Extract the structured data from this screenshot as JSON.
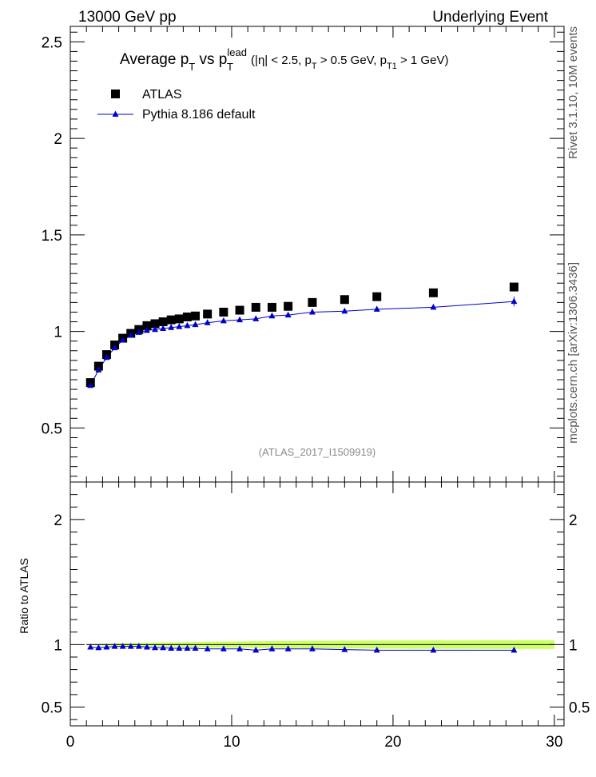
{
  "header": {
    "left": "13000 GeV pp",
    "right": "Underlying Event"
  },
  "side": {
    "rivet": "Rivet 3.1.10,  10M events",
    "mcplots": "mcplots.cern.ch [arXiv:1306.3436]"
  },
  "chart_data": {
    "type": "scatter",
    "title": {
      "a": "Average p",
      "a_sub": "T",
      "b": " vs p",
      "b_sup": "lead",
      "b_sub": "T",
      "c": " (|η| < 2.5, p",
      "c_sub": "T",
      "d": " > 0.5 GeV, p",
      "d_sub": "T1",
      "e": " > 1 GeV)"
    },
    "watermark": "(ATLAS_2017_I1509919)",
    "legend": {
      "position": "top-left",
      "entries": [
        "ATLAS",
        "Pythia 8.186 default"
      ]
    },
    "main": {
      "xlim": [
        0,
        30.6
      ],
      "ylim": [
        0.22,
        2.58
      ],
      "xticks": [
        0,
        10,
        20,
        30
      ],
      "yticks": [
        0.5,
        1,
        1.5,
        2,
        2.5
      ],
      "ytick_labels": [
        "0.5",
        "1",
        "1.5",
        "2",
        "2.5"
      ]
    },
    "ratio": {
      "ylabel": "Ratio to ATLAS",
      "ylim": [
        0.35,
        2.3
      ],
      "yticks": [
        0.5,
        1,
        2
      ],
      "ytick_labels": [
        "0.5",
        "1",
        "2"
      ],
      "xtick_labels": [
        "0",
        "10",
        "20",
        "30"
      ]
    },
    "series": [
      {
        "name": "ATLAS",
        "color": "#000000",
        "marker": "square",
        "x": [
          1.25,
          1.75,
          2.25,
          2.75,
          3.25,
          3.75,
          4.25,
          4.75,
          5.25,
          5.75,
          6.25,
          6.75,
          7.25,
          7.75,
          8.5,
          9.5,
          10.5,
          11.5,
          12.5,
          13.5,
          15,
          17,
          19,
          22.5,
          27.5
        ],
        "y": [
          0.735,
          0.82,
          0.88,
          0.93,
          0.965,
          0.99,
          1.01,
          1.03,
          1.04,
          1.05,
          1.06,
          1.065,
          1.075,
          1.08,
          1.09,
          1.1,
          1.11,
          1.125,
          1.125,
          1.13,
          1.15,
          1.165,
          1.18,
          1.2,
          1.23
        ]
      },
      {
        "name": "Pythia 8.186 default",
        "color": "#0000cc",
        "marker": "triangle",
        "x": [
          1.25,
          1.75,
          2.25,
          2.75,
          3.25,
          3.75,
          4.25,
          4.75,
          5.25,
          5.75,
          6.25,
          6.75,
          7.25,
          7.75,
          8.5,
          9.5,
          10.5,
          11.5,
          12.5,
          13.5,
          15,
          17,
          19,
          22.5,
          27.5
        ],
        "y": [
          0.72,
          0.8,
          0.865,
          0.915,
          0.955,
          0.98,
          0.995,
          1.005,
          1.01,
          1.015,
          1.02,
          1.025,
          1.03,
          1.035,
          1.045,
          1.055,
          1.06,
          1.065,
          1.08,
          1.085,
          1.1,
          1.105,
          1.115,
          1.125,
          1.155
        ]
      }
    ],
    "ratio_series": {
      "x": [
        1.25,
        1.75,
        2.25,
        2.75,
        3.25,
        3.75,
        4.25,
        4.75,
        5.25,
        5.75,
        6.25,
        6.75,
        7.25,
        7.75,
        8.5,
        9.5,
        10.5,
        11.5,
        12.5,
        13.5,
        15,
        17,
        19,
        22.5,
        27.5
      ],
      "y": [
        0.98,
        0.975,
        0.98,
        0.985,
        0.985,
        0.985,
        0.985,
        0.98,
        0.975,
        0.975,
        0.97,
        0.97,
        0.97,
        0.97,
        0.965,
        0.965,
        0.965,
        0.955,
        0.965,
        0.965,
        0.965,
        0.96,
        0.955,
        0.955,
        0.955
      ]
    },
    "band_color": "#ccff66"
  }
}
